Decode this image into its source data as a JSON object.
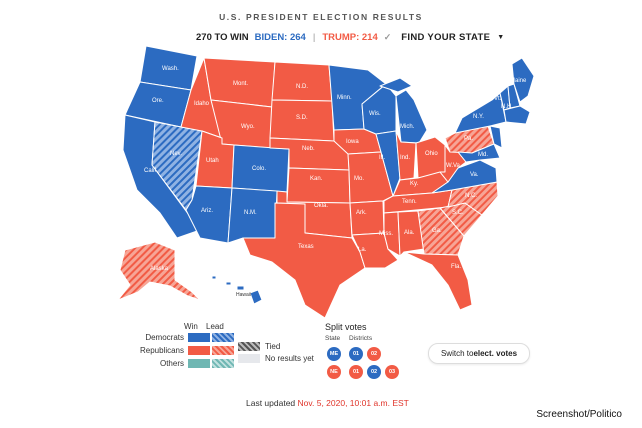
{
  "header": {
    "title": "U.S. PRESIDENT ELECTION RESULTS",
    "to_win": "270 TO WIN",
    "biden": "BIDEN: 264",
    "separator": "|",
    "trump": "TRUMP: 214",
    "find_state": "FIND YOUR STATE"
  },
  "colors": {
    "democrat": "#2c6bc1",
    "republican": "#f25b45",
    "others": "#6fb7b3",
    "tied": "#555555",
    "no_results": "#e6e8ec"
  },
  "map": {
    "states": [
      {
        "id": "wash",
        "label": "Wash.",
        "party": "D"
      },
      {
        "id": "ore",
        "label": "Ore.",
        "party": "D"
      },
      {
        "id": "calif",
        "label": "Calif.",
        "party": "D"
      },
      {
        "id": "nev",
        "label": "Nev.",
        "party": "D-lead"
      },
      {
        "id": "idaho",
        "label": "Idaho",
        "party": "R"
      },
      {
        "id": "mont",
        "label": "Mont.",
        "party": "R"
      },
      {
        "id": "wyo",
        "label": "Wyo.",
        "party": "R"
      },
      {
        "id": "utah",
        "label": "Utah",
        "party": "R"
      },
      {
        "id": "ariz",
        "label": "Ariz.",
        "party": "D"
      },
      {
        "id": "colo",
        "label": "Colo.",
        "party": "D"
      },
      {
        "id": "nm",
        "label": "N.M.",
        "party": "D"
      },
      {
        "id": "nd",
        "label": "N.D.",
        "party": "R"
      },
      {
        "id": "sd",
        "label": "S.D.",
        "party": "R"
      },
      {
        "id": "neb",
        "label": "Neb.",
        "party": "R"
      },
      {
        "id": "kan",
        "label": "Kan.",
        "party": "R"
      },
      {
        "id": "okla",
        "label": "Okla.",
        "party": "R"
      },
      {
        "id": "texas",
        "label": "Texas",
        "party": "R"
      },
      {
        "id": "minn",
        "label": "Minn.",
        "party": "D"
      },
      {
        "id": "iowa",
        "label": "Iowa",
        "party": "R"
      },
      {
        "id": "mo",
        "label": "Mo.",
        "party": "R"
      },
      {
        "id": "ark",
        "label": "Ark.",
        "party": "R"
      },
      {
        "id": "la",
        "label": "La.",
        "party": "R"
      },
      {
        "id": "wis",
        "label": "Wis.",
        "party": "D"
      },
      {
        "id": "ill",
        "label": "Ill.",
        "party": "D"
      },
      {
        "id": "mich",
        "label": "Mich.",
        "party": "D"
      },
      {
        "id": "ind",
        "label": "Ind.",
        "party": "R"
      },
      {
        "id": "ohio",
        "label": "Ohio",
        "party": "R"
      },
      {
        "id": "ky",
        "label": "Ky.",
        "party": "R"
      },
      {
        "id": "tenn",
        "label": "Tenn.",
        "party": "R"
      },
      {
        "id": "miss",
        "label": "Miss.",
        "party": "R"
      },
      {
        "id": "ala",
        "label": "Ala.",
        "party": "R"
      },
      {
        "id": "ga",
        "label": "Ga.",
        "party": "R-lead"
      },
      {
        "id": "fla",
        "label": "Fla.",
        "party": "R"
      },
      {
        "id": "sc",
        "label": "S.C.",
        "party": "R"
      },
      {
        "id": "nc",
        "label": "N.C.",
        "party": "R-lead"
      },
      {
        "id": "va",
        "label": "Va.",
        "party": "D"
      },
      {
        "id": "wva",
        "label": "W.Va.",
        "party": "R"
      },
      {
        "id": "pa",
        "label": "Pa.",
        "party": "R-lead"
      },
      {
        "id": "ny",
        "label": "N.Y.",
        "party": "D"
      },
      {
        "id": "md",
        "label": "Md.",
        "party": "D"
      },
      {
        "id": "maine",
        "label": "Maine",
        "party": "D"
      },
      {
        "id": "vt",
        "label": "Vt.",
        "party": "D"
      },
      {
        "id": "nh",
        "label": "N.H.",
        "party": "D"
      },
      {
        "id": "alaska",
        "label": "Alaska",
        "party": "R-lead"
      },
      {
        "id": "hawaii",
        "label": "Hawaii",
        "party": "D"
      }
    ]
  },
  "legend": {
    "win": "Win",
    "lead": "Lead",
    "rows": [
      "Democrats",
      "Republicans",
      "Others"
    ],
    "tied": "Tied",
    "no_results": "No results yet"
  },
  "split_votes": {
    "title": "Split votes",
    "state_label": "State",
    "districts_label": "Districts",
    "me": {
      "state": "ME",
      "districts": [
        "01",
        "02"
      ]
    },
    "ne": {
      "state": "NE",
      "districts": [
        "01",
        "02",
        "03"
      ]
    }
  },
  "switch_button": {
    "prefix": "Switch to ",
    "bold": "elect. votes"
  },
  "footer": {
    "last_updated_label": "Last updated ",
    "timestamp": "Nov. 5, 2020, 10:01 a.m. EST",
    "credit": "Screenshot/Politico"
  }
}
